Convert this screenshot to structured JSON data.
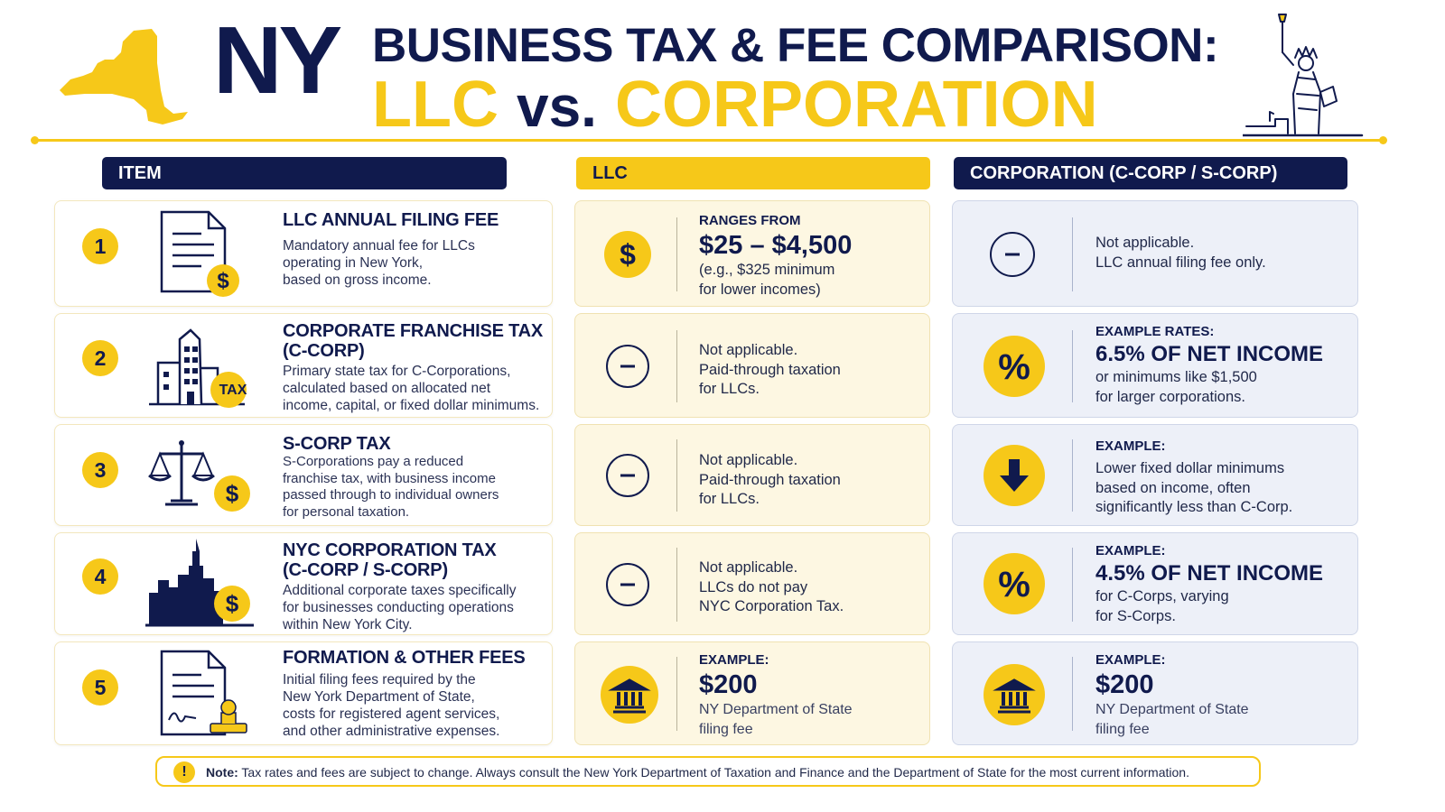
{
  "header": {
    "state": "NY",
    "title_line1": "BUSINESS TAX & FEE COMPARISON:",
    "title_left": "LLC",
    "title_vs": "vs.",
    "title_right": "CORPORATION"
  },
  "columns": {
    "item": "ITEM",
    "llc": "LLC",
    "corp": "CORPORATION (C-CORP / S-CORP)"
  },
  "rows": [
    {
      "number": "1",
      "title": "LLC ANNUAL FILING FEE",
      "description": "Mandatory annual fee for LLCs\noperating in New York,\nbased on gross income.",
      "icon": "document-dollar-icon",
      "llc": {
        "icon": "dollar-circle-icon",
        "label": "RANGES FROM",
        "value": "$25 – $4,500",
        "body": "(e.g., $325 minimum\nfor lower incomes)"
      },
      "corp": {
        "icon": "minus-circle-icon",
        "body": "Not applicable.\nLLC annual filing fee only."
      }
    },
    {
      "number": "2",
      "title": "CORPORATE FRANCHISE TAX\n(C-CORP)",
      "description": "Primary state tax for C-Corporations,\ncalculated based on allocated net\nincome, capital, or fixed dollar minimums.",
      "icon": "building-tax-icon",
      "icon_badge": "TAX",
      "llc": {
        "icon": "minus-circle-icon",
        "body": "Not applicable.\nPaid-through taxation\nfor LLCs."
      },
      "corp": {
        "icon": "percent-icon",
        "label": "EXAMPLE RATES:",
        "value": "6.5% OF NET INCOME",
        "body": "or minimums like $1,500\nfor larger corporations."
      }
    },
    {
      "number": "3",
      "title": "S-CORP TAX",
      "description": "S-Corporations pay a reduced\nfranchise tax, with business income\npassed through to individual owners\nfor personal taxation.",
      "icon": "scales-dollar-icon",
      "llc": {
        "icon": "minus-circle-icon",
        "body": "Not applicable.\nPaid-through taxation\nfor LLCs."
      },
      "corp": {
        "icon": "arrow-down-icon",
        "label": "EXAMPLE:",
        "body": "Lower fixed dollar minimums\nbased on income, often\nsignificantly less than C-Corp."
      }
    },
    {
      "number": "4",
      "title": "NYC CORPORATION TAX\n(C-CORP / S-CORP)",
      "description": "Additional corporate taxes specifically\nfor businesses conducting operations\nwithin New York City.",
      "icon": "city-skyline-dollar-icon",
      "llc": {
        "icon": "minus-circle-icon",
        "body": "Not applicable.\nLLCs do not pay\nNYC Corporation Tax."
      },
      "corp": {
        "icon": "percent-icon",
        "label": "EXAMPLE:",
        "value": "4.5% OF NET INCOME",
        "body": "for C-Corps, varying\nfor S-Corps."
      }
    },
    {
      "number": "5",
      "title": "FORMATION & OTHER FEES",
      "description": "Initial filing fees required by the\nNew York Department of State,\ncosts for registered agent services,\nand other administrative expenses.",
      "icon": "document-stamp-icon",
      "llc": {
        "icon": "bank-icon",
        "label": "EXAMPLE:",
        "value": "$200",
        "body": "NY Department of State\nfiling fee"
      },
      "corp": {
        "icon": "bank-icon",
        "label": "EXAMPLE:",
        "value": "$200",
        "body": "NY Department of State\nfiling fee"
      }
    }
  ],
  "note": {
    "prefix": "Note:",
    "text": "Tax rates and fees are subject to change. Always consult the New York Department of Taxation and Finance and the Department of State for the most current information."
  },
  "colors": {
    "navy": "#101a4d",
    "gold": "#f6c819",
    "llc_bg": "#fdf7e2",
    "corp_bg": "#edf0f8"
  }
}
